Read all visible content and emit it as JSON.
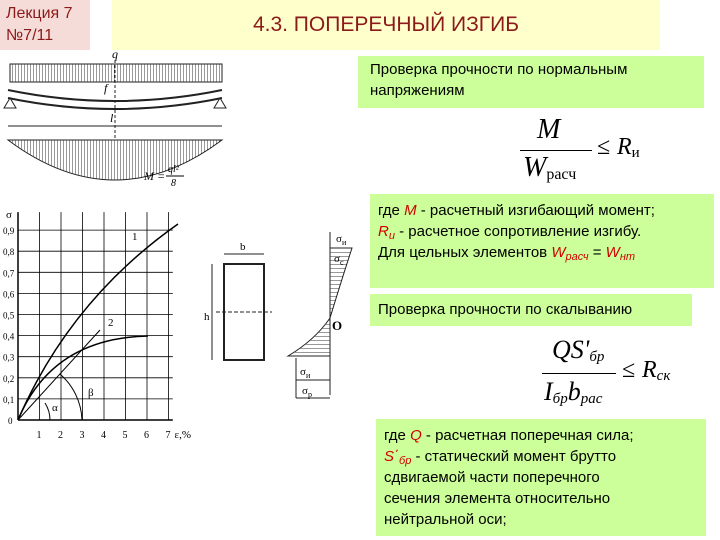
{
  "badge": {
    "line1": "Лекция 7",
    "line2": "№7/11"
  },
  "title": "4.3. ПОПЕРЕЧНЫЙ ИЗГИБ",
  "normal_check": {
    "heading": "Проверка прочности по нормальным напряжениям",
    "formula": {
      "numerator": "M",
      "denominator": "W",
      "denominator_sub": "расч",
      "relation": "≤",
      "rhs": "R",
      "rhs_sub": "и"
    },
    "notes": [
      {
        "pre": "где ",
        "sym": "M",
        "sub": "",
        "post": " - расчетный изгибающий момент;"
      },
      {
        "pre": "",
        "sym": "R",
        "sub": "и",
        "post": " - расчетное сопротивление изгибу."
      },
      {
        "pre": "Для цельных элементов ",
        "sym": "W",
        "sub": "расч",
        "post": " = ",
        "sym2": "W",
        "sub2": "нт"
      }
    ]
  },
  "shear_check": {
    "heading": "Проверка прочности по скалыванию",
    "formula": {
      "numerator": "QS'",
      "numerator_sub": "бр",
      "denominator": "I",
      "denominator_sub": "бр",
      "denominator2": "b",
      "denominator2_sub": "рас",
      "relation": "≤",
      "rhs": "R",
      "rhs_sub": "ск"
    },
    "notes": [
      {
        "pre": "где ",
        "sym": "Q",
        "sub": "",
        "post": " - расчетная поперечная сила;"
      },
      {
        "pre": "",
        "sym": "S΄",
        "sub": "бр",
        "post": " - статический момент брутто"
      },
      {
        "pre": "сдвигаемой части поперечного",
        "sym": "",
        "sub": "",
        "post": ""
      },
      {
        "pre": "сечения элемента относительно",
        "sym": "",
        "sub": "",
        "post": ""
      },
      {
        "pre": "нейтральной оси;",
        "sym": "",
        "sub": "",
        "post": ""
      }
    ]
  },
  "beam_figure": {
    "load": "q",
    "deflection": "f",
    "span": "l",
    "moment": "M =",
    "moment_num": "ql²",
    "moment_den": "8"
  },
  "diagram": {
    "y_axis": "σ",
    "x_axis": "ε,%",
    "yticks": [
      "0",
      "0,1",
      "0,2",
      "0,3",
      "0,4",
      "0,5",
      "0,6",
      "0,7",
      "0,8",
      "0,9"
    ],
    "xticks": [
      "1",
      "2",
      "3",
      "4",
      "5",
      "6",
      "7"
    ],
    "curve_labels": [
      "1",
      "2"
    ],
    "angles": [
      "α",
      "β"
    ]
  },
  "section_figure": {
    "width": "b",
    "height": "h",
    "top_stress": "σ",
    "top_stress_sub": "и",
    "compression": "σ",
    "compression_sub": "с",
    "center": "O",
    "bottom_stress": "σ",
    "bottom_stress_sub": "и",
    "tension": "σ",
    "tension_sub": "р"
  }
}
